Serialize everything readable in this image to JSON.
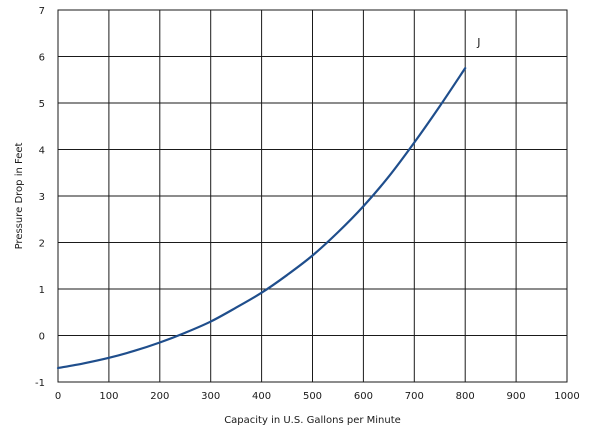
{
  "chart_data": {
    "type": "line",
    "title": "",
    "xlabel": "Capacity in U.S. Gallons per Minute",
    "ylabel": "Pressure Drop in Feet",
    "xlim": [
      0,
      1000
    ],
    "ylim": [
      -1,
      7
    ],
    "xticks": [
      0,
      100,
      200,
      300,
      400,
      500,
      600,
      700,
      800,
      900,
      1000
    ],
    "yticks": [
      -1,
      0,
      1,
      2,
      3,
      4,
      5,
      6,
      7
    ],
    "grid": true,
    "series": [
      {
        "name": "J",
        "color": "#1f4e8c",
        "x": [
          0,
          50,
          100,
          150,
          200,
          250,
          300,
          350,
          400,
          450,
          500,
          550,
          600,
          650,
          700,
          750,
          800
        ],
        "y": [
          -0.7,
          -0.6,
          -0.48,
          -0.33,
          -0.15,
          0.06,
          0.3,
          0.6,
          0.92,
          1.3,
          1.72,
          2.22,
          2.78,
          3.42,
          4.15,
          4.93,
          5.75
        ]
      }
    ]
  }
}
